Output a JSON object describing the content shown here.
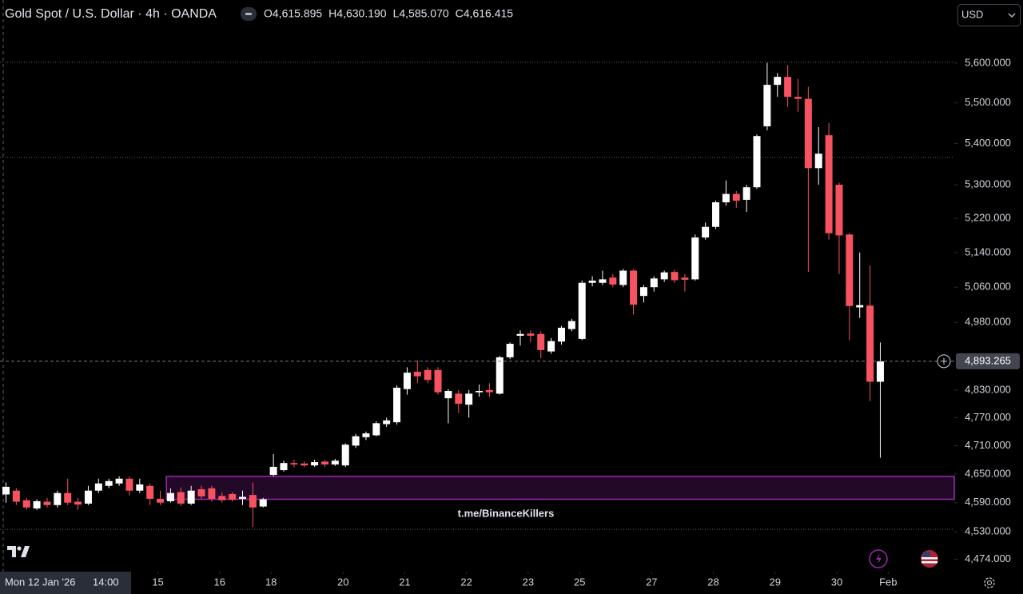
{
  "chart_data": {
    "type": "candlestick",
    "title": "Gold Spot / U.S. Dollar · 4h · OANDA",
    "header_values": [
      "O4,615.895",
      "H4,630.190",
      "L4,585.070",
      "C4,616.415"
    ],
    "currency": "USD",
    "log_scale": true,
    "up_color": "#ffffff",
    "down_color": "#f7525f",
    "open": [
      4607,
      4615,
      4595,
      4578,
      4592,
      4585,
      4610,
      4592,
      4588,
      4615,
      4625,
      4630,
      4640,
      4615,
      4625,
      4598,
      4593,
      4612,
      4588,
      4618,
      4620,
      4604,
      4608,
      4598,
      4606,
      4582,
      4648,
      4658,
      4673,
      4672,
      4668,
      4676,
      4670,
      4668,
      4710,
      4728,
      4732,
      4756,
      4760,
      4832,
      4870,
      4874,
      4874,
      4812,
      4822,
      4798,
      4825,
      4830,
      4822,
      4902,
      4950,
      4955,
      4954,
      4915,
      4937,
      4965,
      4943,
      5070,
      5070,
      5082,
      5065,
      5098,
      5040,
      5060,
      5078,
      5095,
      5082,
      5078,
      5175,
      5200,
      5258,
      5278,
      5264,
      5294,
      5442,
      5545,
      5565,
      5515,
      5510,
      5340,
      5420,
      5300,
      5182,
      5014,
      5018,
      4848
    ],
    "high": [
      4632,
      4620,
      4600,
      4597,
      4600,
      4615,
      4640,
      4600,
      4625,
      4640,
      4640,
      4645,
      4645,
      4640,
      4630,
      4615,
      4620,
      4622,
      4625,
      4625,
      4625,
      4612,
      4612,
      4615,
      4632,
      4600,
      4692,
      4678,
      4680,
      4676,
      4680,
      4680,
      4682,
      4715,
      4735,
      4740,
      4762,
      4770,
      4840,
      4880,
      4895,
      4880,
      4880,
      4832,
      4830,
      4830,
      4842,
      4845,
      4905,
      4935,
      4962,
      4962,
      4960,
      4945,
      4972,
      4988,
      5075,
      5085,
      5098,
      5090,
      5102,
      5102,
      5065,
      5085,
      5098,
      5100,
      5090,
      5182,
      5210,
      5262,
      5310,
      5285,
      5300,
      5422,
      5600,
      5575,
      5595,
      5560,
      5540,
      5440,
      5450,
      5305,
      5185,
      5140,
      5110,
      4935
    ],
    "low": [
      4590,
      4585,
      4575,
      4575,
      4580,
      4580,
      4585,
      4575,
      4585,
      4610,
      4620,
      4625,
      4605,
      4610,
      4585,
      4585,
      4590,
      4583,
      4585,
      4598,
      4592,
      4590,
      4592,
      4585,
      4540,
      4580,
      4645,
      4655,
      4664,
      4664,
      4665,
      4665,
      4667,
      4665,
      4705,
      4722,
      4730,
      4750,
      4755,
      4820,
      4845,
      4845,
      4820,
      4758,
      4780,
      4770,
      4815,
      4815,
      4820,
      4898,
      4928,
      4935,
      4900,
      4910,
      4930,
      4960,
      4940,
      5062,
      5065,
      5060,
      5060,
      4998,
      5025,
      5050,
      5072,
      5070,
      5050,
      5075,
      5170,
      5195,
      5250,
      5245,
      5235,
      5290,
      5432,
      5515,
      5490,
      5478,
      5095,
      5300,
      5170,
      5090,
      4940,
      4990,
      4806,
      4684
    ],
    "close": [
      4623,
      4592,
      4580,
      4593,
      4585,
      4610,
      4590,
      4586,
      4615,
      4630,
      4635,
      4640,
      4615,
      4628,
      4598,
      4590,
      4610,
      4588,
      4615,
      4603,
      4598,
      4595,
      4596,
      4602,
      4580,
      4597,
      4665,
      4673,
      4670,
      4668,
      4675,
      4670,
      4678,
      4712,
      4730,
      4736,
      4758,
      4764,
      4835,
      4868,
      4860,
      4852,
      4825,
      4828,
      4800,
      4822,
      4828,
      4825,
      4902,
      4932,
      4954,
      4950,
      4918,
      4938,
      4968,
      4983,
      5070,
      5075,
      5078,
      5066,
      5098,
      5020,
      5060,
      5080,
      5094,
      5076,
      5077,
      5175,
      5200,
      5258,
      5278,
      5262,
      5294,
      5418,
      5545,
      5565,
      5515,
      5510,
      5340,
      5375,
      5185,
      5180,
      5017,
      5019,
      4848,
      4893
    ],
    "ylim": [
      4449,
      5762
    ],
    "yticks": [
      {
        "value": 5600,
        "label": "5,600.000"
      },
      {
        "value": 5500,
        "label": "5,500.000"
      },
      {
        "value": 5400,
        "label": "5,400.000"
      },
      {
        "value": 5300,
        "label": "5,300.000"
      },
      {
        "value": 5220,
        "label": "5,220.000"
      },
      {
        "value": 5140,
        "label": "5,140.000"
      },
      {
        "value": 5060,
        "label": "5,060.000"
      },
      {
        "value": 4980,
        "label": "4,980.000"
      },
      {
        "value": 4830,
        "label": "4,830.000"
      },
      {
        "value": 4770,
        "label": "4,770.000"
      },
      {
        "value": 4710,
        "label": "4,710.000"
      },
      {
        "value": 4650,
        "label": "4,650.000"
      },
      {
        "value": 4590,
        "label": "4,590.000"
      },
      {
        "value": 4530,
        "label": "4,530.000"
      },
      {
        "value": 4474,
        "label": "4,474.000"
      }
    ],
    "xticks": [
      {
        "value": 15,
        "label": "15"
      },
      {
        "value": 21,
        "label": "16"
      },
      {
        "value": 26,
        "label": "18"
      },
      {
        "value": 33,
        "label": "20"
      },
      {
        "value": 39,
        "label": "21"
      },
      {
        "value": 45,
        "label": "22"
      },
      {
        "value": 51,
        "label": "23"
      },
      {
        "value": 56,
        "label": "25"
      },
      {
        "value": 63,
        "label": "27"
      },
      {
        "value": 69,
        "label": "28"
      },
      {
        "value": 75,
        "label": "29"
      },
      {
        "value": 81,
        "label": "30"
      },
      {
        "value": 86,
        "label": "Feb"
      }
    ],
    "crosshair_label": [
      "Mon 12 Jan '26",
      "14:00"
    ],
    "last_price": {
      "value": 4893.265,
      "label": "4,893.265"
    },
    "hlines": [
      5602,
      5366,
      4535
    ],
    "zone": {
      "low": 4597,
      "high": 4645,
      "color": "#9c27b0"
    },
    "watermark": "t.me/BinanceKillers"
  }
}
